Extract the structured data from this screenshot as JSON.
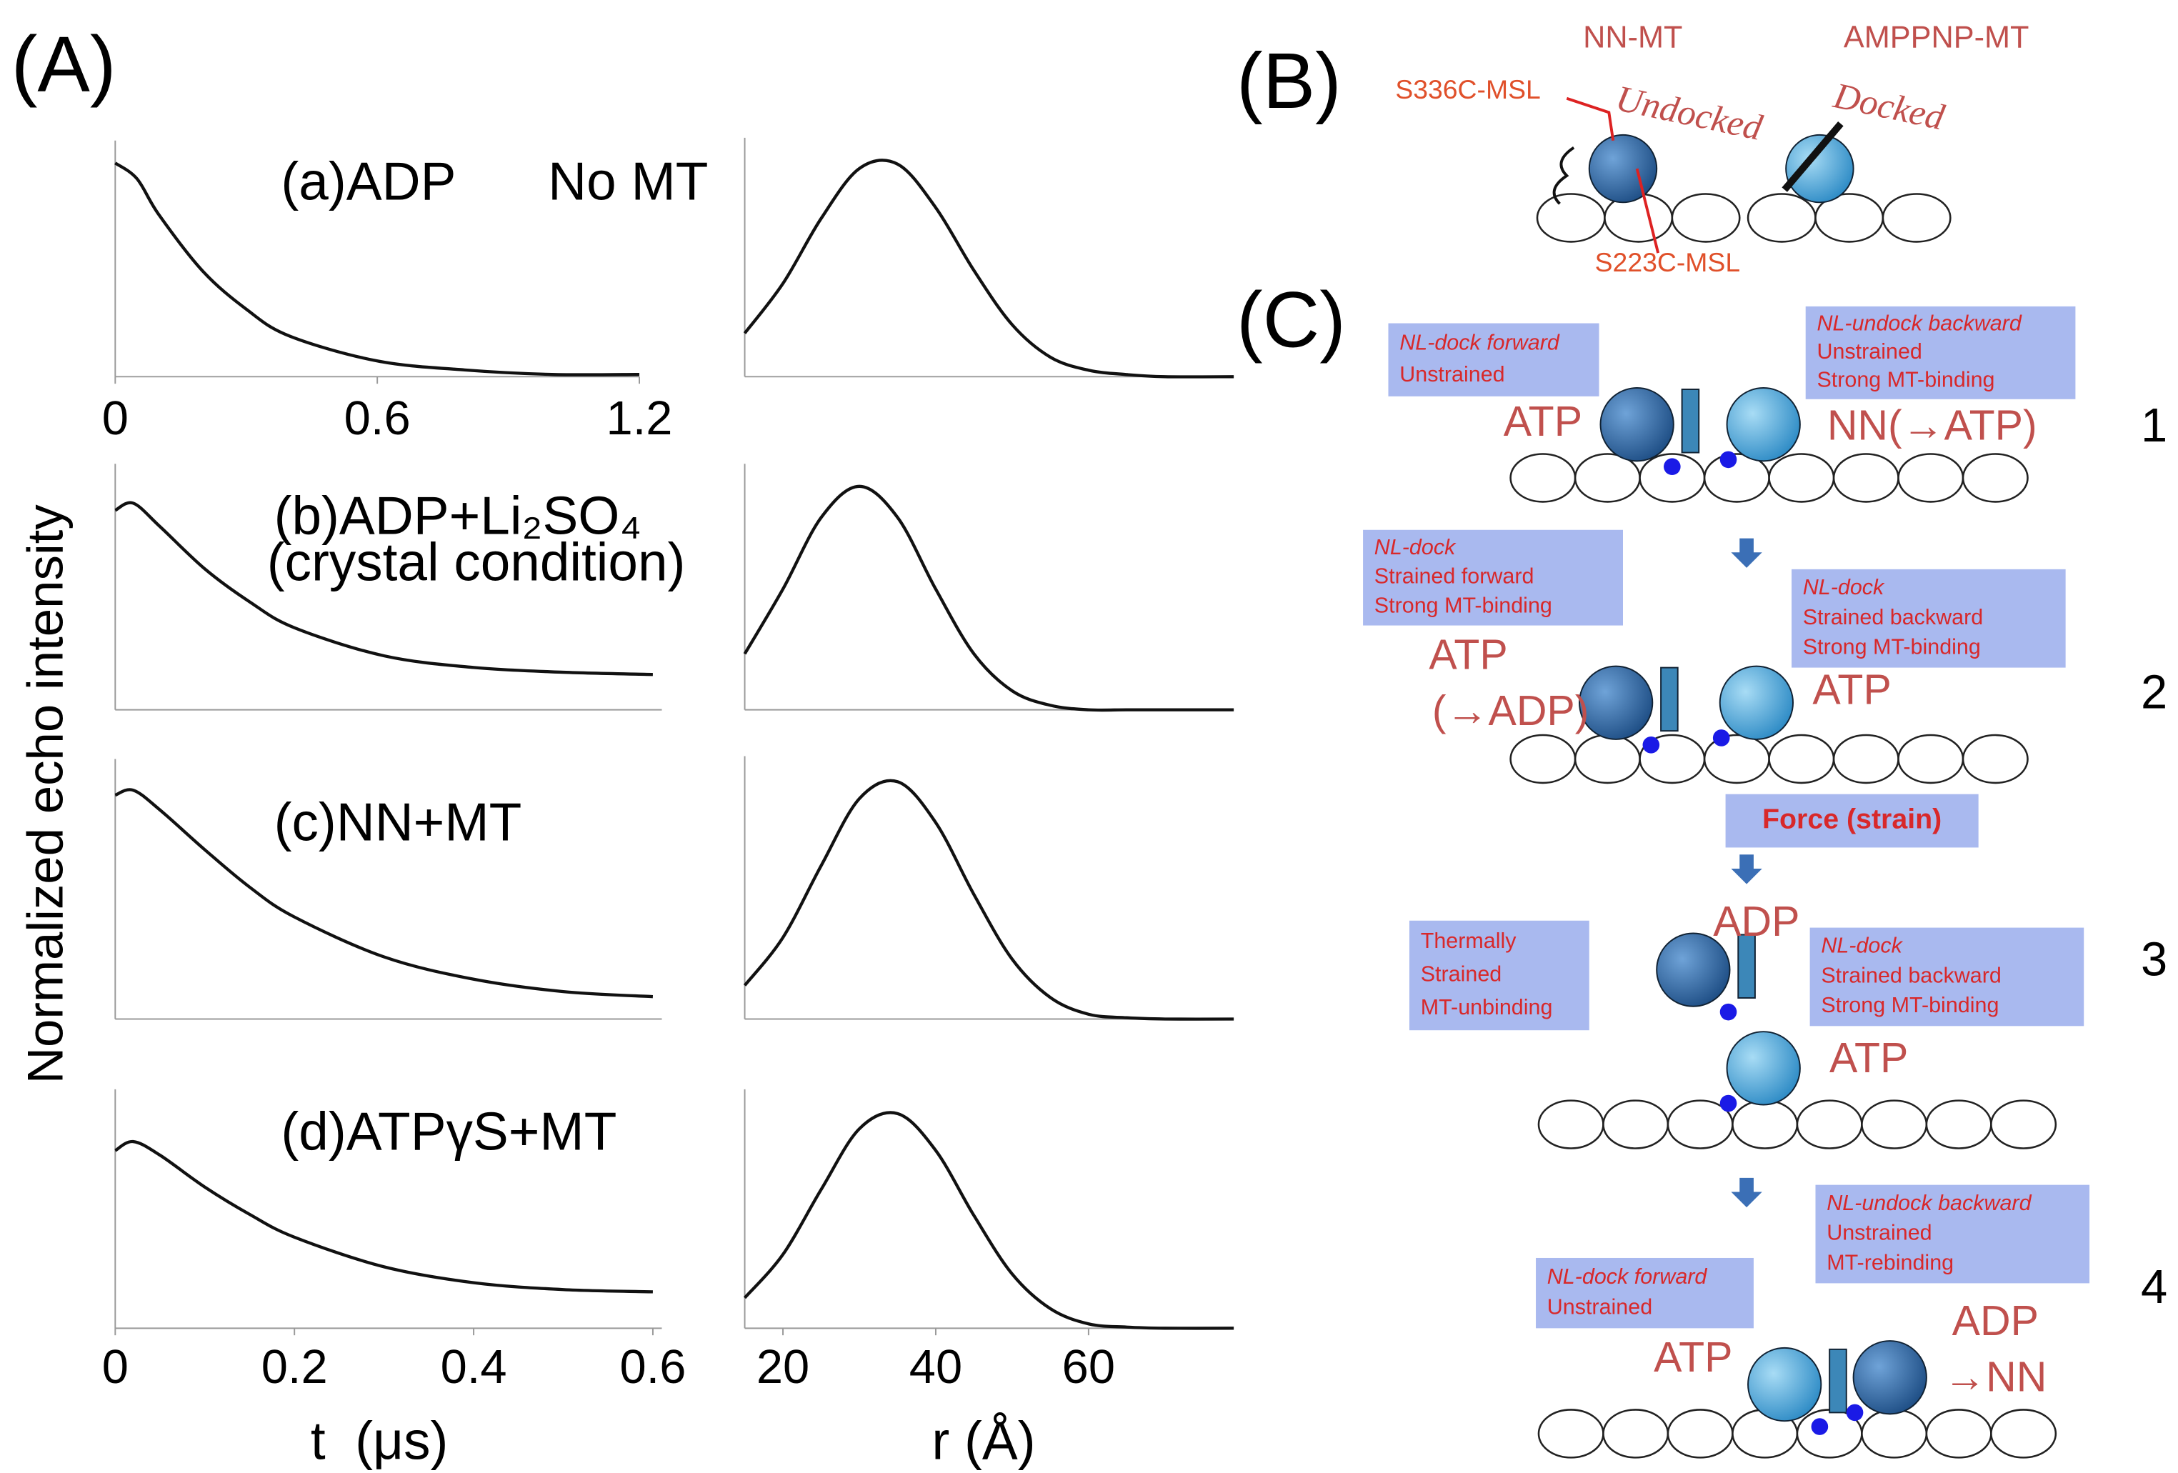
{
  "figure": {
    "label_a": "(A)",
    "ylabel": "Normalized echo intensity"
  },
  "chart_data": [
    {
      "type": "line",
      "title": "(a)ADP",
      "annotation": "No MT",
      "x": [
        0,
        0.05,
        0.1,
        0.2,
        0.3,
        0.4,
        0.6,
        0.8,
        1.0,
        1.2
      ],
      "values": [
        0.95,
        0.88,
        0.72,
        0.47,
        0.3,
        0.18,
        0.07,
        0.03,
        0.01,
        0.01
      ],
      "xlim": [
        0,
        1.2
      ],
      "ylim": [
        0,
        1
      ],
      "xticks": [
        0,
        0.6,
        1.2
      ]
    },
    {
      "type": "line",
      "title": "(b)ADP+Li₂SO₄",
      "subtitle": "(crystal condition)",
      "x": [
        0,
        0.02,
        0.05,
        0.1,
        0.15,
        0.2,
        0.3,
        0.4,
        0.5,
        0.6
      ],
      "values": [
        0.85,
        0.88,
        0.78,
        0.6,
        0.46,
        0.35,
        0.23,
        0.18,
        0.16,
        0.15
      ],
      "xlim": [
        0,
        0.61
      ],
      "ylim": [
        0,
        1
      ]
    },
    {
      "type": "line",
      "title": "(c)NN+MT",
      "x": [
        0,
        0.02,
        0.05,
        0.1,
        0.15,
        0.2,
        0.3,
        0.4,
        0.5,
        0.6
      ],
      "values": [
        0.9,
        0.92,
        0.84,
        0.68,
        0.53,
        0.41,
        0.25,
        0.16,
        0.11,
        0.09
      ],
      "xlim": [
        0,
        0.61
      ],
      "ylim": [
        0,
        1
      ]
    },
    {
      "type": "line",
      "title": "(d)ATPγS+MT",
      "x": [
        0,
        0.02,
        0.05,
        0.1,
        0.15,
        0.2,
        0.3,
        0.4,
        0.5,
        0.6
      ],
      "values": [
        0.78,
        0.82,
        0.76,
        0.62,
        0.5,
        0.4,
        0.27,
        0.2,
        0.17,
        0.16
      ],
      "xlim": [
        0,
        0.61
      ],
      "ylim": [
        0,
        1
      ],
      "xticks": [
        0,
        0.2,
        0.4,
        0.6
      ],
      "xlabel": "t  (μs)"
    },
    {
      "type": "line",
      "x": [
        15,
        20,
        25,
        30,
        35,
        40,
        45,
        50,
        55,
        60,
        65,
        70,
        79
      ],
      "values": [
        0.2,
        0.43,
        0.73,
        0.96,
        0.98,
        0.78,
        0.49,
        0.24,
        0.09,
        0.03,
        0.01,
        0,
        0
      ],
      "xlim": [
        15,
        79
      ],
      "ylim": [
        0,
        1.05
      ]
    },
    {
      "type": "line",
      "x": [
        15,
        20,
        25,
        30,
        35,
        40,
        45,
        50,
        55,
        60,
        65,
        70,
        79
      ],
      "values": [
        0.25,
        0.54,
        0.86,
        1,
        0.86,
        0.54,
        0.25,
        0.085,
        0.02,
        0,
        0,
        0,
        0
      ],
      "xlim": [
        15,
        79
      ],
      "ylim": [
        0,
        1.05
      ]
    },
    {
      "type": "line",
      "x": [
        15,
        20,
        25,
        30,
        35,
        40,
        45,
        50,
        55,
        60,
        65,
        70,
        79
      ],
      "values": [
        0.14,
        0.34,
        0.64,
        0.92,
        0.99,
        0.82,
        0.52,
        0.25,
        0.09,
        0.02,
        0.005,
        0,
        0
      ],
      "xlim": [
        15,
        79
      ],
      "ylim": [
        0,
        1.05
      ]
    },
    {
      "type": "line",
      "x": [
        15,
        20,
        25,
        30,
        35,
        40,
        45,
        50,
        55,
        60,
        65,
        70,
        79
      ],
      "values": [
        0.14,
        0.34,
        0.64,
        0.92,
        0.99,
        0.82,
        0.52,
        0.25,
        0.09,
        0.02,
        0.005,
        0,
        0
      ],
      "xlim": [
        15,
        79
      ],
      "ylim": [
        0,
        1.05
      ],
      "xticks": [
        20,
        40,
        60
      ],
      "xlabel": "r (Å)"
    }
  ],
  "panel_b": {
    "label": "(B)",
    "left_title": "NN-MT",
    "right_title": "AMPPNP-MT",
    "probe_1": "S336C-MSL",
    "probe_2": "S223C-MSL",
    "left_state": "Undocked",
    "right_state": "Docked"
  },
  "panel_c": {
    "label": "(C)",
    "force": "Force (strain)",
    "steps": [
      {
        "number": "1",
        "boxes": [
          [
            "NL-dock forward",
            "Unstrained"
          ],
          [
            "NL-undock backward",
            "Unstrained",
            "Strong MT-binding"
          ]
        ],
        "labels": [
          "ATP",
          "NN(→ATP)"
        ]
      },
      {
        "number": "2",
        "boxes": [
          [
            "NL-dock",
            "Strained forward",
            "Strong MT-binding"
          ],
          [
            "NL-dock",
            "Strained backward",
            "Strong MT-binding"
          ]
        ],
        "labels": [
          "ATP",
          "(→ADP)",
          "ATP"
        ]
      },
      {
        "number": "3",
        "boxes": [
          [
            "Thermally",
            "Strained",
            "MT-unbinding"
          ],
          [
            "NL-dock",
            "Strained backward",
            "Strong MT-binding"
          ]
        ],
        "labels": [
          "ADP",
          "ATP"
        ]
      },
      {
        "number": "4",
        "boxes": [
          [
            "NL-undock backward",
            "Unstrained",
            "MT-rebinding"
          ],
          [
            "NL-dock forward",
            "Unstrained"
          ]
        ],
        "labels": [
          "ATP",
          "ADP",
          "→NN"
        ]
      }
    ]
  }
}
